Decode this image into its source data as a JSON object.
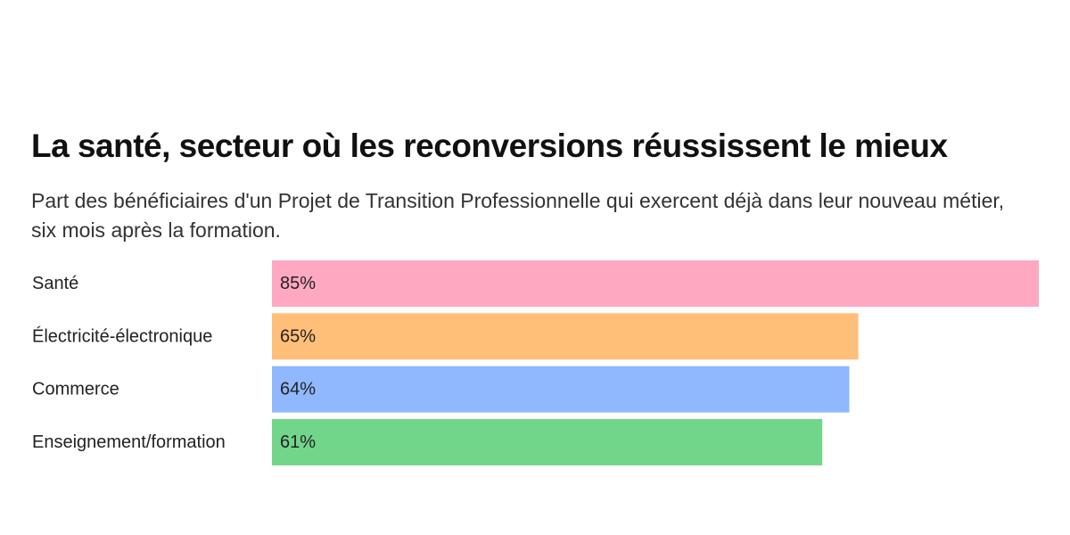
{
  "chart_data": {
    "type": "bar",
    "orientation": "horizontal",
    "title": "La santé, secteur où les reconversions réussissent le mieux",
    "subtitle": "Part des bénéficiaires d'un Projet de Transition Professionnelle qui exercent déjà dans leur nouveau métier, six mois après la formation.",
    "categories": [
      "Santé",
      "Électricité-électronique",
      "Commerce",
      "Enseignement/formation"
    ],
    "values": [
      85,
      65,
      64,
      61
    ],
    "value_labels": [
      "85%",
      "65%",
      "64%",
      "61%"
    ],
    "colors": [
      "#ffa8c1",
      "#ffbf78",
      "#8fb8ff",
      "#72d68a"
    ],
    "unit": "%",
    "grid": false,
    "legend": "none"
  }
}
